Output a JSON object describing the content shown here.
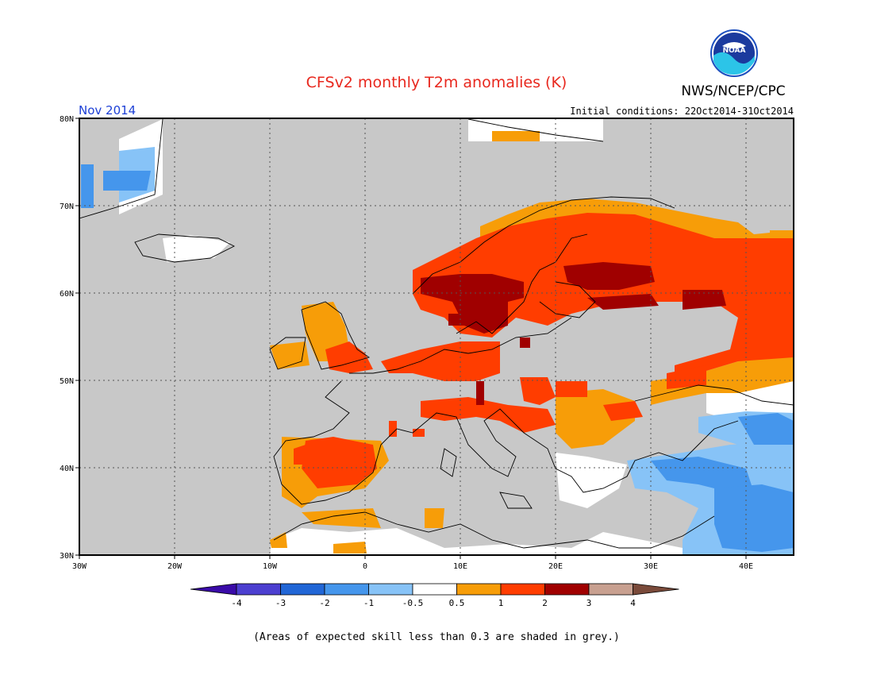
{
  "title": "CFSv2 monthly T2m anomalies (K)",
  "agency": "NWS/NCEP/CPC",
  "logo_text": "NOAA",
  "month_label": "Nov 2014",
  "initial_conditions": "Initial conditions: 22Oct2014-31Oct2014",
  "lat_ticks": [
    "80N",
    "70N",
    "60N",
    "50N",
    "40N",
    "30N"
  ],
  "lon_ticks": [
    "30W",
    "20W",
    "10W",
    "0",
    "10E",
    "20E",
    "30E",
    "40E"
  ],
  "colorbar": {
    "labels": [
      "-4",
      "-3",
      "-2",
      "-1",
      "-0.5",
      "0.5",
      "1",
      "2",
      "3",
      "4"
    ],
    "colors": [
      "#3a0ba8",
      "#4c3fd0",
      "#2166d6",
      "#4596ec",
      "#87c3f7",
      "#ffffff",
      "#f79d08",
      "#ff3d00",
      "#a00000",
      "#c8a090",
      "#7a4a3a"
    ]
  },
  "footnote": "(Areas of expected skill less than 0.3 are shaded in grey.)",
  "map": {
    "lon_range": [
      -30,
      45
    ],
    "lat_range": [
      30,
      80
    ],
    "grey_color": "#c8c8c8",
    "gridlines": "dotted"
  }
}
